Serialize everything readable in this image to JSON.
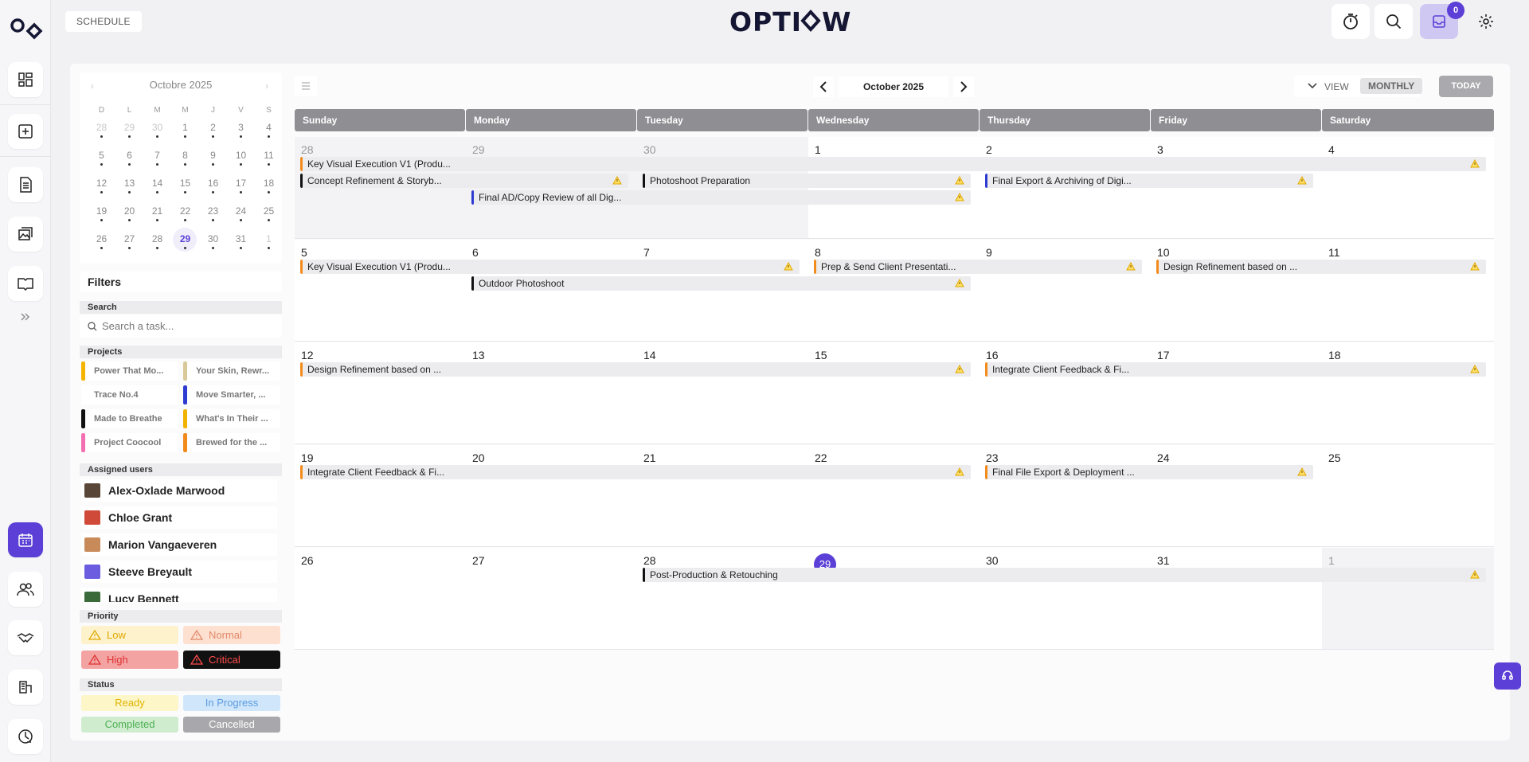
{
  "brand": {
    "name": "OPTIOW"
  },
  "breadcrumb": "SCHEDULE",
  "notifications": {
    "count": "0"
  },
  "rail": [
    "dashboard-icon",
    "add-icon",
    "document-icon",
    "gallery-icon",
    "book-icon",
    "expand-icon",
    "calendar-icon",
    "users-icon",
    "handshake-icon",
    "organization-icon",
    "analytics-icon"
  ],
  "mini_calendar": {
    "title": "Octobre 2025",
    "weekdays": [
      "D",
      "L",
      "M",
      "M",
      "J",
      "V",
      "S"
    ],
    "today": "29",
    "weeks": [
      [
        "28",
        "29",
        "30",
        "1",
        "2",
        "3",
        "4"
      ],
      [
        "5",
        "6",
        "7",
        "8",
        "9",
        "10",
        "11"
      ],
      [
        "12",
        "13",
        "14",
        "15",
        "16",
        "17",
        "18"
      ],
      [
        "19",
        "20",
        "21",
        "22",
        "23",
        "24",
        "25"
      ],
      [
        "26",
        "27",
        "28",
        "29",
        "30",
        "31",
        "1"
      ]
    ]
  },
  "filters": {
    "title": "Filters",
    "search_label": "Search",
    "search_placeholder": "Search a task...",
    "projects_label": "Projects",
    "projects": [
      {
        "name": "Power That Mo...",
        "color": "#f5b400"
      },
      {
        "name": "Your Skin, Rewr...",
        "color": "#d8c89a"
      },
      {
        "name": "Trace No.4",
        "color": "#ffffff"
      },
      {
        "name": "Move Smarter, ...",
        "color": "#2e3bd1"
      },
      {
        "name": "Made to Breathe",
        "color": "#111111"
      },
      {
        "name": "What's In Their ...",
        "color": "#f2b200"
      },
      {
        "name": "Project Coocool",
        "color": "#f36fb1"
      },
      {
        "name": "Brewed for the ...",
        "color": "#f38b1c"
      }
    ],
    "users_label": "Assigned users",
    "users": [
      {
        "name": "Alex-Oxlade Marwood",
        "color": "#5a4636"
      },
      {
        "name": "Chloe Grant",
        "color": "#d04a3a"
      },
      {
        "name": "Marion Vangaeveren",
        "color": "#c98a5a"
      },
      {
        "name": "Steeve Breyault",
        "color": "#6b5ce0"
      },
      {
        "name": "Lucy Bennett",
        "color": "#3a6a3a"
      }
    ],
    "priority_label": "Priority",
    "priorities": [
      {
        "label": "Low",
        "bg": "#fdf2cc",
        "fg": "#e0a800"
      },
      {
        "label": "Normal",
        "bg": "#fde0d0",
        "fg": "#e08a6a"
      },
      {
        "label": "High",
        "bg": "#f4a3a3",
        "fg": "#d33"
      },
      {
        "label": "Critical",
        "bg": "#111111",
        "fg": "#ff4a4a"
      }
    ],
    "status_label": "Status",
    "statuses": [
      {
        "label": "Ready",
        "bg": "#fdf6c9",
        "fg": "#e0b400"
      },
      {
        "label": "In Progress",
        "bg": "#cfe6fb",
        "fg": "#5b9be0"
      },
      {
        "label": "Completed",
        "bg": "#cfeccf",
        "fg": "#4caf50"
      },
      {
        "label": "Cancelled",
        "bg": "#a8a8ac",
        "fg": "#ffffff"
      }
    ]
  },
  "calendar": {
    "month_label": "October 2025",
    "view_label": "VIEW",
    "view_mode": "MONTHLY",
    "today_label": "TODAY",
    "days": [
      "Sunday",
      "Monday",
      "Tuesday",
      "Wednesday",
      "Thursday",
      "Friday",
      "Saturday"
    ],
    "weeks": [
      {
        "dates": [
          "28",
          "29",
          "30",
          "1",
          "2",
          "3",
          "4"
        ],
        "other": [
          true,
          true,
          true,
          false,
          false,
          false,
          false
        ]
      },
      {
        "dates": [
          "5",
          "6",
          "7",
          "8",
          "9",
          "10",
          "11"
        ],
        "other": [
          false,
          false,
          false,
          false,
          false,
          false,
          false
        ]
      },
      {
        "dates": [
          "12",
          "13",
          "14",
          "15",
          "16",
          "17",
          "18"
        ],
        "other": [
          false,
          false,
          false,
          false,
          false,
          false,
          false
        ]
      },
      {
        "dates": [
          "19",
          "20",
          "21",
          "22",
          "23",
          "24",
          "25"
        ],
        "other": [
          false,
          false,
          false,
          false,
          false,
          false,
          false
        ]
      },
      {
        "dates": [
          "26",
          "27",
          "28",
          "29",
          "30",
          "31",
          "1"
        ],
        "other": [
          false,
          false,
          false,
          false,
          false,
          false,
          true
        ]
      }
    ],
    "events": [
      {
        "week": 0,
        "row": 0,
        "start": 0,
        "span": 7,
        "title": "Key Visual Execution V1 (Produ...",
        "color": "#f38b1c",
        "warn": true
      },
      {
        "week": 0,
        "row": 1,
        "start": 0,
        "span": 2,
        "title": "Concept Refinement & Storyb...",
        "color": "#111111",
        "warn": true
      },
      {
        "week": 0,
        "row": 1,
        "start": 2,
        "span": 2,
        "title": "Photoshoot Preparation",
        "color": "#111111",
        "warn": true
      },
      {
        "week": 0,
        "row": 1,
        "start": 4,
        "span": 2,
        "title": "Final Export & Archiving of Digi...",
        "color": "#2e3bd1",
        "warn": true
      },
      {
        "week": 0,
        "row": 2,
        "start": 1,
        "span": 3,
        "title": "Final AD/Copy Review of all Dig...",
        "color": "#2e3bd1",
        "warn": true
      },
      {
        "week": 1,
        "row": 0,
        "start": 0,
        "span": 3,
        "title": "Key Visual Execution V1 (Produ...",
        "color": "#f38b1c",
        "warn": true
      },
      {
        "week": 1,
        "row": 0,
        "start": 3,
        "span": 2,
        "title": "Prep & Send Client Presentati...",
        "color": "#f38b1c",
        "warn": true
      },
      {
        "week": 1,
        "row": 0,
        "start": 5,
        "span": 2,
        "title": "Design Refinement based on ...",
        "color": "#f38b1c",
        "warn": true
      },
      {
        "week": 1,
        "row": 1,
        "start": 1,
        "span": 3,
        "title": "Outdoor Photoshoot",
        "color": "#111111",
        "warn": true
      },
      {
        "week": 2,
        "row": 0,
        "start": 0,
        "span": 4,
        "title": "Design Refinement based on ...",
        "color": "#f38b1c",
        "warn": true
      },
      {
        "week": 2,
        "row": 0,
        "start": 4,
        "span": 3,
        "title": "Integrate Client Feedback & Fi...",
        "color": "#f38b1c",
        "warn": true
      },
      {
        "week": 3,
        "row": 0,
        "start": 0,
        "span": 4,
        "title": "Integrate Client Feedback & Fi...",
        "color": "#f38b1c",
        "warn": true
      },
      {
        "week": 3,
        "row": 0,
        "start": 4,
        "span": 2,
        "title": "Final File Export & Deployment ...",
        "color": "#f38b1c",
        "warn": true
      },
      {
        "week": 4,
        "row": 0,
        "start": 2,
        "span": 5,
        "title": "Post-Production & Retouching",
        "color": "#111111",
        "warn": true
      }
    ]
  }
}
